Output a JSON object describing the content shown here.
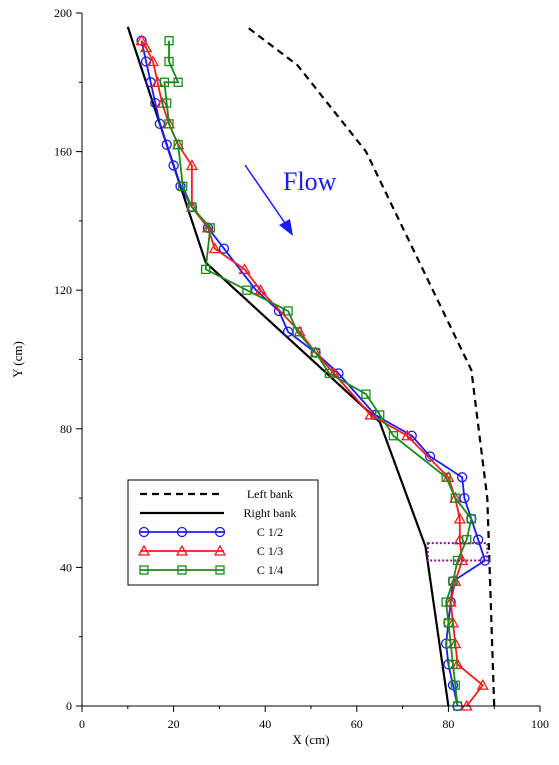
{
  "chart_data": {
    "type": "line",
    "xlabel": "X (cm)",
    "ylabel": "Y (cm)",
    "xlim": [
      0,
      100
    ],
    "ylim": [
      0,
      200
    ],
    "x_ticks": [
      "0",
      "20",
      "40",
      "60",
      "80",
      "100"
    ],
    "y_ticks": [
      "0",
      "40",
      "80",
      "120",
      "160",
      "200"
    ],
    "grid": false,
    "legend_position": "lower-left",
    "annotation": {
      "text": "Flow",
      "color": "#1a1aff"
    },
    "series": [
      {
        "name": "Left bank",
        "color": "#000000",
        "style": "dashed",
        "marker": "none",
        "x": [
          90,
          88.5,
          85,
          62,
          47,
          36
        ],
        "y": [
          0,
          60,
          97,
          160,
          185,
          196
        ]
      },
      {
        "name": "Right bank",
        "color": "#000000",
        "style": "solid",
        "marker": "none",
        "x": [
          80,
          75,
          65,
          27,
          10
        ],
        "y": [
          0,
          46,
          82,
          128,
          196
        ]
      },
      {
        "name": "C 1/2",
        "color": "#1a1aff",
        "style": "solid",
        "marker": "circle",
        "x": [
          82,
          81,
          80,
          79.5,
          80,
          80.5,
          81,
          88,
          86.5,
          85,
          83.5,
          83,
          76,
          72,
          64,
          56,
          51,
          45,
          43,
          38,
          31,
          27.5,
          24,
          21.5,
          20,
          18.5,
          17,
          16,
          15,
          14,
          13
        ],
        "y": [
          0,
          6,
          12,
          18,
          24,
          30,
          36,
          42,
          48,
          54,
          60,
          66,
          72,
          78,
          84,
          96,
          102,
          108,
          114,
          120,
          132,
          138,
          144,
          150,
          156,
          162,
          168,
          174,
          180,
          186,
          192
        ]
      },
      {
        "name": "C 1/3",
        "color": "#ff1a1a",
        "style": "solid",
        "marker": "triangle",
        "x": [
          84,
          87.5,
          82,
          81.5,
          81,
          80.5,
          81.5,
          83,
          82.5,
          82.5,
          81.5,
          80,
          71,
          63,
          55,
          51,
          47.5,
          39,
          35.5,
          29,
          27.5,
          24,
          24,
          21,
          19,
          17.5,
          16.5,
          15.5,
          14,
          13
        ],
        "y": [
          0,
          6,
          12,
          18,
          24,
          30,
          36,
          42,
          48,
          54,
          60,
          66,
          78,
          84,
          96,
          102,
          108,
          120,
          126,
          132,
          138,
          144,
          156,
          162,
          168,
          174,
          180,
          186,
          190,
          192
        ]
      },
      {
        "name": "C 1/4",
        "color": "#1a8a1a",
        "style": "solid",
        "marker": "square",
        "x": [
          82,
          81.5,
          81,
          80.5,
          80,
          79.5,
          81,
          82,
          84,
          85,
          81.5,
          79.5,
          68,
          65,
          62,
          54,
          51,
          47,
          45,
          36,
          27,
          28,
          24,
          22,
          21,
          19,
          18.5,
          18,
          21,
          19,
          19
        ],
        "y": [
          0,
          6,
          12,
          18,
          24,
          30,
          36,
          42,
          48,
          54,
          60,
          66,
          78,
          84,
          90,
          96,
          102,
          108,
          114,
          120,
          126,
          138,
          144,
          150,
          162,
          168,
          174,
          180,
          180,
          186,
          192
        ]
      }
    ]
  }
}
